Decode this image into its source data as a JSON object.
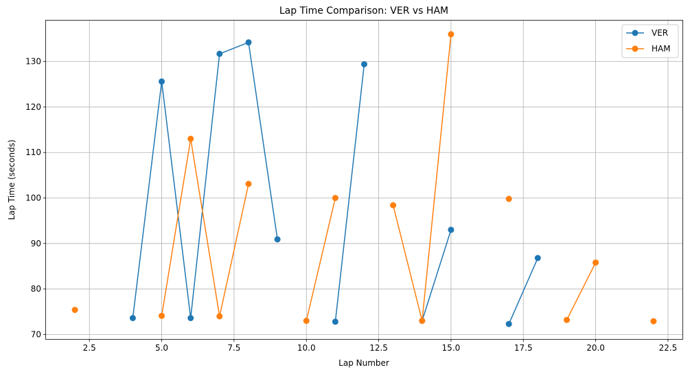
{
  "chart_data": {
    "type": "line",
    "title": "Lap Time Comparison: VER vs HAM",
    "xlabel": "Lap Number",
    "ylabel": "Lap Time (seconds)",
    "xlim": [
      1.0,
      23.0
    ],
    "ylim": [
      69.0,
      139.0
    ],
    "xticks": [
      2.5,
      5.0,
      7.5,
      10.0,
      12.5,
      15.0,
      17.5,
      20.0,
      22.5
    ],
    "xtick_labels": [
      "2.5",
      "5.0",
      "7.5",
      "10.0",
      "12.5",
      "15.0",
      "17.5",
      "20.0",
      "22.5"
    ],
    "yticks": [
      70,
      80,
      90,
      100,
      110,
      120,
      130
    ],
    "ytick_labels": [
      "70",
      "80",
      "90",
      "100",
      "110",
      "120",
      "130"
    ],
    "grid": true,
    "legend_position": "top-right",
    "series": [
      {
        "name": "VER",
        "color": "#1f77b4",
        "points": [
          [
            4,
            73.6
          ],
          [
            5,
            125.6
          ],
          [
            6,
            73.6
          ],
          [
            7,
            131.7
          ],
          [
            8,
            134.2
          ],
          [
            9,
            90.9
          ],
          null,
          [
            11,
            72.8
          ],
          [
            12,
            129.4
          ],
          null,
          [
            14,
            73.0
          ],
          [
            15,
            93.0
          ],
          null,
          [
            17,
            72.3
          ],
          [
            18,
            86.8
          ]
        ]
      },
      {
        "name": "HAM",
        "color": "#ff7f0e",
        "points": [
          [
            2,
            75.4
          ],
          null,
          [
            5,
            74.1
          ],
          [
            6,
            113.0
          ],
          [
            7,
            74.0
          ],
          [
            8,
            103.1
          ],
          null,
          [
            10,
            73.0
          ],
          [
            11,
            100.0
          ],
          null,
          [
            13,
            98.4
          ],
          [
            14,
            73.0
          ],
          [
            15,
            136.0
          ],
          null,
          [
            17,
            99.8
          ],
          null,
          [
            19,
            73.2
          ],
          [
            20,
            85.8
          ],
          null,
          [
            22,
            72.9
          ]
        ]
      }
    ]
  }
}
